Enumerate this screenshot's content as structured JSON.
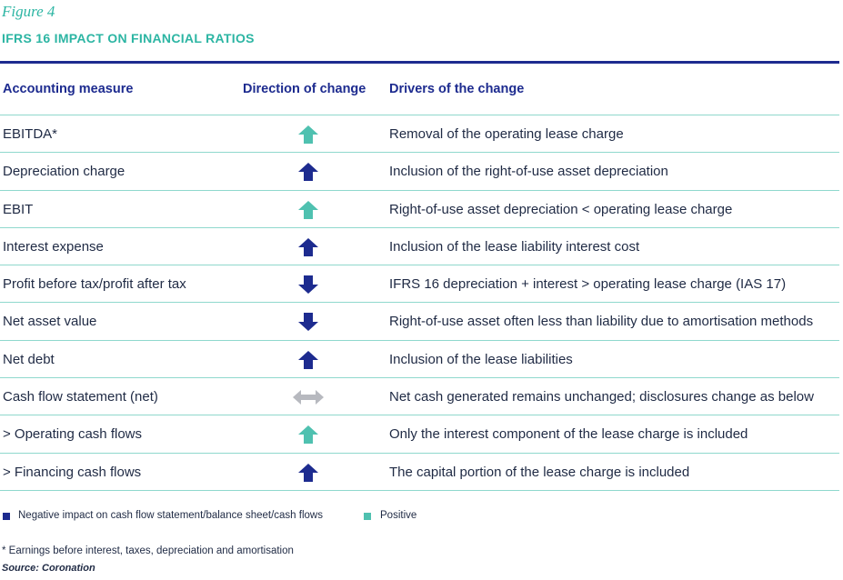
{
  "figure_label": "Figure 4",
  "title": "IFRS 16 IMPACT ON FINANCIAL RATIOS",
  "colors": {
    "negative": "#1d2b8f",
    "positive": "#4fc1b0",
    "neutral": "#b7b9bf",
    "title": "#2cb5a3"
  },
  "table": {
    "headers": [
      "Accounting measure",
      "Direction of change",
      "Drivers of the change"
    ],
    "rows": [
      {
        "measure": "EBITDA*",
        "direction": "up",
        "impact": "positive",
        "driver": "Removal of the operating lease charge"
      },
      {
        "measure": "Depreciation charge",
        "direction": "up",
        "impact": "negative",
        "driver": "Inclusion of the right-of-use asset depreciation"
      },
      {
        "measure": "EBIT",
        "direction": "up",
        "impact": "positive",
        "driver": "Right-of-use asset depreciation < operating lease charge"
      },
      {
        "measure": "Interest expense",
        "direction": "up",
        "impact": "negative",
        "driver": "Inclusion of the lease liability interest cost"
      },
      {
        "measure": "Profit before tax/profit after tax",
        "direction": "down",
        "impact": "negative",
        "driver": "IFRS 16 depreciation + interest > operating lease charge (IAS 17)"
      },
      {
        "measure": "Net asset value",
        "direction": "down",
        "impact": "negative",
        "driver": "Right-of-use asset often less than liability due to amortisation methods"
      },
      {
        "measure": "Net debt",
        "direction": "up",
        "impact": "negative",
        "driver": "Inclusion of the lease liabilities"
      },
      {
        "measure": "Cash flow statement (net)",
        "direction": "both",
        "impact": "neutral",
        "driver": "Net cash generated remains unchanged; disclosures change as below"
      },
      {
        "measure": "> Operating cash flows",
        "direction": "up",
        "impact": "positive",
        "driver": "Only the interest component of the lease charge is included"
      },
      {
        "measure": "> Financing cash flows",
        "direction": "up",
        "impact": "negative",
        "driver": "The capital portion of the lease charge is included"
      }
    ]
  },
  "legend": [
    {
      "label": "Negative impact on cash flow statement/balance sheet/cash flows",
      "impact": "negative"
    },
    {
      "label": "Positive",
      "impact": "positive"
    }
  ],
  "footnote": "* Earnings before interest, taxes, depreciation and amortisation",
  "source": "Source: Coronation"
}
